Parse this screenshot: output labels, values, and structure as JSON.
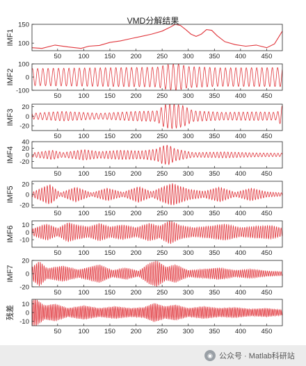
{
  "chart_data": {
    "type": "line",
    "title": "VMD分解结果",
    "x": {
      "range": [
        1,
        480
      ],
      "ticks": [
        50,
        100,
        150,
        200,
        250,
        300,
        350,
        400,
        450
      ]
    },
    "line_color": "#e0343a",
    "grid": false,
    "panels": [
      {
        "ylabel": "IMF1",
        "ylim": [
          80,
          150
        ],
        "yticks": [
          100,
          150
        ],
        "points": [
          [
            1,
            88
          ],
          [
            20,
            86
          ],
          [
            45,
            95
          ],
          [
            70,
            90
          ],
          [
            95,
            86
          ],
          [
            110,
            92
          ],
          [
            130,
            94
          ],
          [
            150,
            102
          ],
          [
            170,
            106
          ],
          [
            190,
            112
          ],
          [
            210,
            118
          ],
          [
            230,
            124
          ],
          [
            250,
            132
          ],
          [
            265,
            142
          ],
          [
            275,
            150
          ],
          [
            285,
            147
          ],
          [
            295,
            136
          ],
          [
            305,
            124
          ],
          [
            315,
            118
          ],
          [
            325,
            124
          ],
          [
            335,
            136
          ],
          [
            345,
            134
          ],
          [
            355,
            120
          ],
          [
            370,
            104
          ],
          [
            390,
            96
          ],
          [
            410,
            92
          ],
          [
            430,
            95
          ],
          [
            450,
            88
          ],
          [
            465,
            98
          ],
          [
            480,
            132
          ]
        ]
      },
      {
        "ylabel": "IMF2",
        "ylim": [
          -100,
          100
        ],
        "yticks": [
          -100,
          0,
          100
        ],
        "cycles": 48,
        "envelope": [
          [
            1,
            65
          ],
          [
            120,
            70
          ],
          [
            240,
            75
          ],
          [
            260,
            95
          ],
          [
            280,
            100
          ],
          [
            300,
            80
          ],
          [
            360,
            70
          ],
          [
            480,
            72
          ]
        ]
      },
      {
        "ylabel": "IMF3",
        "ylim": [
          -30,
          25
        ],
        "yticks": [
          -20,
          0,
          20
        ],
        "cycles": 58,
        "envelope": [
          [
            1,
            6
          ],
          [
            60,
            10
          ],
          [
            130,
            6
          ],
          [
            200,
            10
          ],
          [
            240,
            11
          ],
          [
            255,
            24
          ],
          [
            270,
            26
          ],
          [
            290,
            22
          ],
          [
            310,
            11
          ],
          [
            370,
            8
          ],
          [
            430,
            9
          ],
          [
            470,
            8
          ],
          [
            480,
            22
          ]
        ]
      },
      {
        "ylabel": "IMF4",
        "ylim": [
          -40,
          40
        ],
        "yticks": [
          -20,
          0,
          20,
          40
        ],
        "cycles": 70,
        "envelope": [
          [
            1,
            6
          ],
          [
            40,
            14
          ],
          [
            60,
            7
          ],
          [
            100,
            16
          ],
          [
            130,
            10
          ],
          [
            170,
            14
          ],
          [
            210,
            12
          ],
          [
            240,
            18
          ],
          [
            250,
            27
          ],
          [
            262,
            30
          ],
          [
            275,
            18
          ],
          [
            310,
            7
          ],
          [
            370,
            9
          ],
          [
            430,
            6
          ],
          [
            480,
            5
          ]
        ]
      },
      {
        "ylabel": "IMF5",
        "ylim": [
          -25,
          25
        ],
        "yticks": [
          -20,
          0,
          20
        ],
        "cycles": 92,
        "envelope": [
          [
            1,
            4
          ],
          [
            35,
            19
          ],
          [
            55,
            3
          ],
          [
            85,
            14
          ],
          [
            115,
            3
          ],
          [
            145,
            12
          ],
          [
            175,
            4
          ],
          [
            205,
            15
          ],
          [
            230,
            5
          ],
          [
            255,
            16
          ],
          [
            270,
            21
          ],
          [
            300,
            10
          ],
          [
            330,
            6
          ],
          [
            360,
            14
          ],
          [
            390,
            4
          ],
          [
            420,
            12
          ],
          [
            450,
            5
          ],
          [
            480,
            3
          ]
        ]
      },
      {
        "ylabel": "IMF6",
        "ylim": [
          -20,
          15
        ],
        "yticks": [
          -10,
          0,
          10
        ],
        "cycles": 110,
        "envelope": [
          [
            1,
            4
          ],
          [
            20,
            9
          ],
          [
            30,
            11
          ],
          [
            50,
            5
          ],
          [
            70,
            13
          ],
          [
            90,
            9
          ],
          [
            110,
            7
          ],
          [
            130,
            12
          ],
          [
            150,
            7
          ],
          [
            175,
            10
          ],
          [
            200,
            6
          ],
          [
            225,
            12
          ],
          [
            245,
            8
          ],
          [
            265,
            16
          ],
          [
            285,
            9
          ],
          [
            310,
            6
          ],
          [
            340,
            8
          ],
          [
            370,
            11
          ],
          [
            400,
            6
          ],
          [
            430,
            8
          ],
          [
            460,
            9
          ],
          [
            480,
            5
          ]
        ]
      },
      {
        "ylabel": "IMF7",
        "ylim": [
          -20,
          20
        ],
        "yticks": [
          -20,
          0,
          20
        ],
        "cycles": 130,
        "envelope": [
          [
            1,
            10
          ],
          [
            15,
            19
          ],
          [
            30,
            8
          ],
          [
            60,
            12
          ],
          [
            90,
            6
          ],
          [
            130,
            14
          ],
          [
            155,
            5
          ],
          [
            180,
            9
          ],
          [
            205,
            4
          ],
          [
            225,
            16
          ],
          [
            240,
            20
          ],
          [
            258,
            10
          ],
          [
            275,
            14
          ],
          [
            300,
            5
          ],
          [
            330,
            7
          ],
          [
            360,
            9
          ],
          [
            390,
            5
          ],
          [
            420,
            7
          ],
          [
            450,
            4
          ],
          [
            480,
            3
          ]
        ]
      },
      {
        "ylabel": "残差",
        "ylim": [
          -15,
          15
        ],
        "yticks": [
          -10,
          0,
          10
        ],
        "cycles": 150,
        "envelope": [
          [
            1,
            14
          ],
          [
            8,
            16
          ],
          [
            25,
            8
          ],
          [
            45,
            10
          ],
          [
            70,
            5
          ],
          [
            100,
            8
          ],
          [
            130,
            5
          ],
          [
            160,
            7
          ],
          [
            190,
            5
          ],
          [
            215,
            6
          ],
          [
            235,
            11
          ],
          [
            255,
            7
          ],
          [
            275,
            9
          ],
          [
            300,
            5
          ],
          [
            330,
            7
          ],
          [
            360,
            5
          ],
          [
            390,
            6
          ],
          [
            420,
            4
          ],
          [
            450,
            5
          ],
          [
            480,
            3
          ]
        ]
      }
    ]
  },
  "watermark": {
    "icon": "wechat-icon",
    "text": "公众号 · Matlab科研站"
  }
}
